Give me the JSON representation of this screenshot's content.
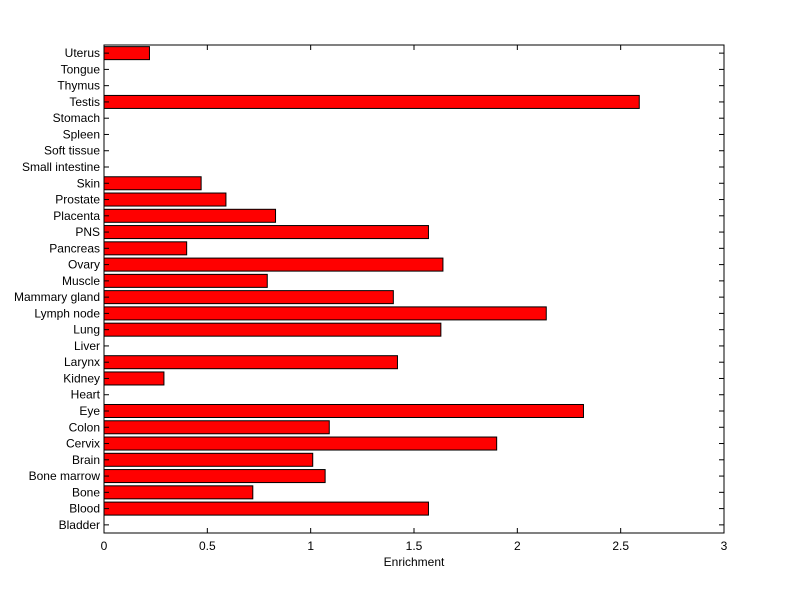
{
  "chart_data": {
    "type": "bar",
    "orientation": "horizontal",
    "title": "",
    "xlabel": "Enrichment",
    "ylabel": "",
    "xlim": [
      0,
      3
    ],
    "xticks": [
      0,
      0.5,
      1,
      1.5,
      2,
      2.5,
      3
    ],
    "xtick_labels": [
      "0",
      "0.5",
      "1",
      "1.5",
      "2",
      "2.5",
      "3"
    ],
    "grid": false,
    "legend": "none",
    "bar_color": "#ff0000",
    "categories": [
      "Bladder",
      "Blood",
      "Bone",
      "Bone marrow",
      "Brain",
      "Cervix",
      "Colon",
      "Eye",
      "Heart",
      "Kidney",
      "Larynx",
      "Liver",
      "Lung",
      "Lymph node",
      "Mammary gland",
      "Muscle",
      "Ovary",
      "Pancreas",
      "PNS",
      "Placenta",
      "Prostate",
      "Skin",
      "Small intestine",
      "Soft tissue",
      "Spleen",
      "Stomach",
      "Testis",
      "Thymus",
      "Tongue",
      "Uterus"
    ],
    "values": [
      0,
      1.57,
      0.72,
      1.07,
      1.01,
      1.9,
      1.09,
      2.32,
      0,
      0.29,
      1.42,
      0,
      1.63,
      2.14,
      1.4,
      0.79,
      1.64,
      0.4,
      1.57,
      0.83,
      0.59,
      0.47,
      0,
      0,
      0,
      0,
      2.59,
      0,
      0,
      0.22
    ]
  }
}
